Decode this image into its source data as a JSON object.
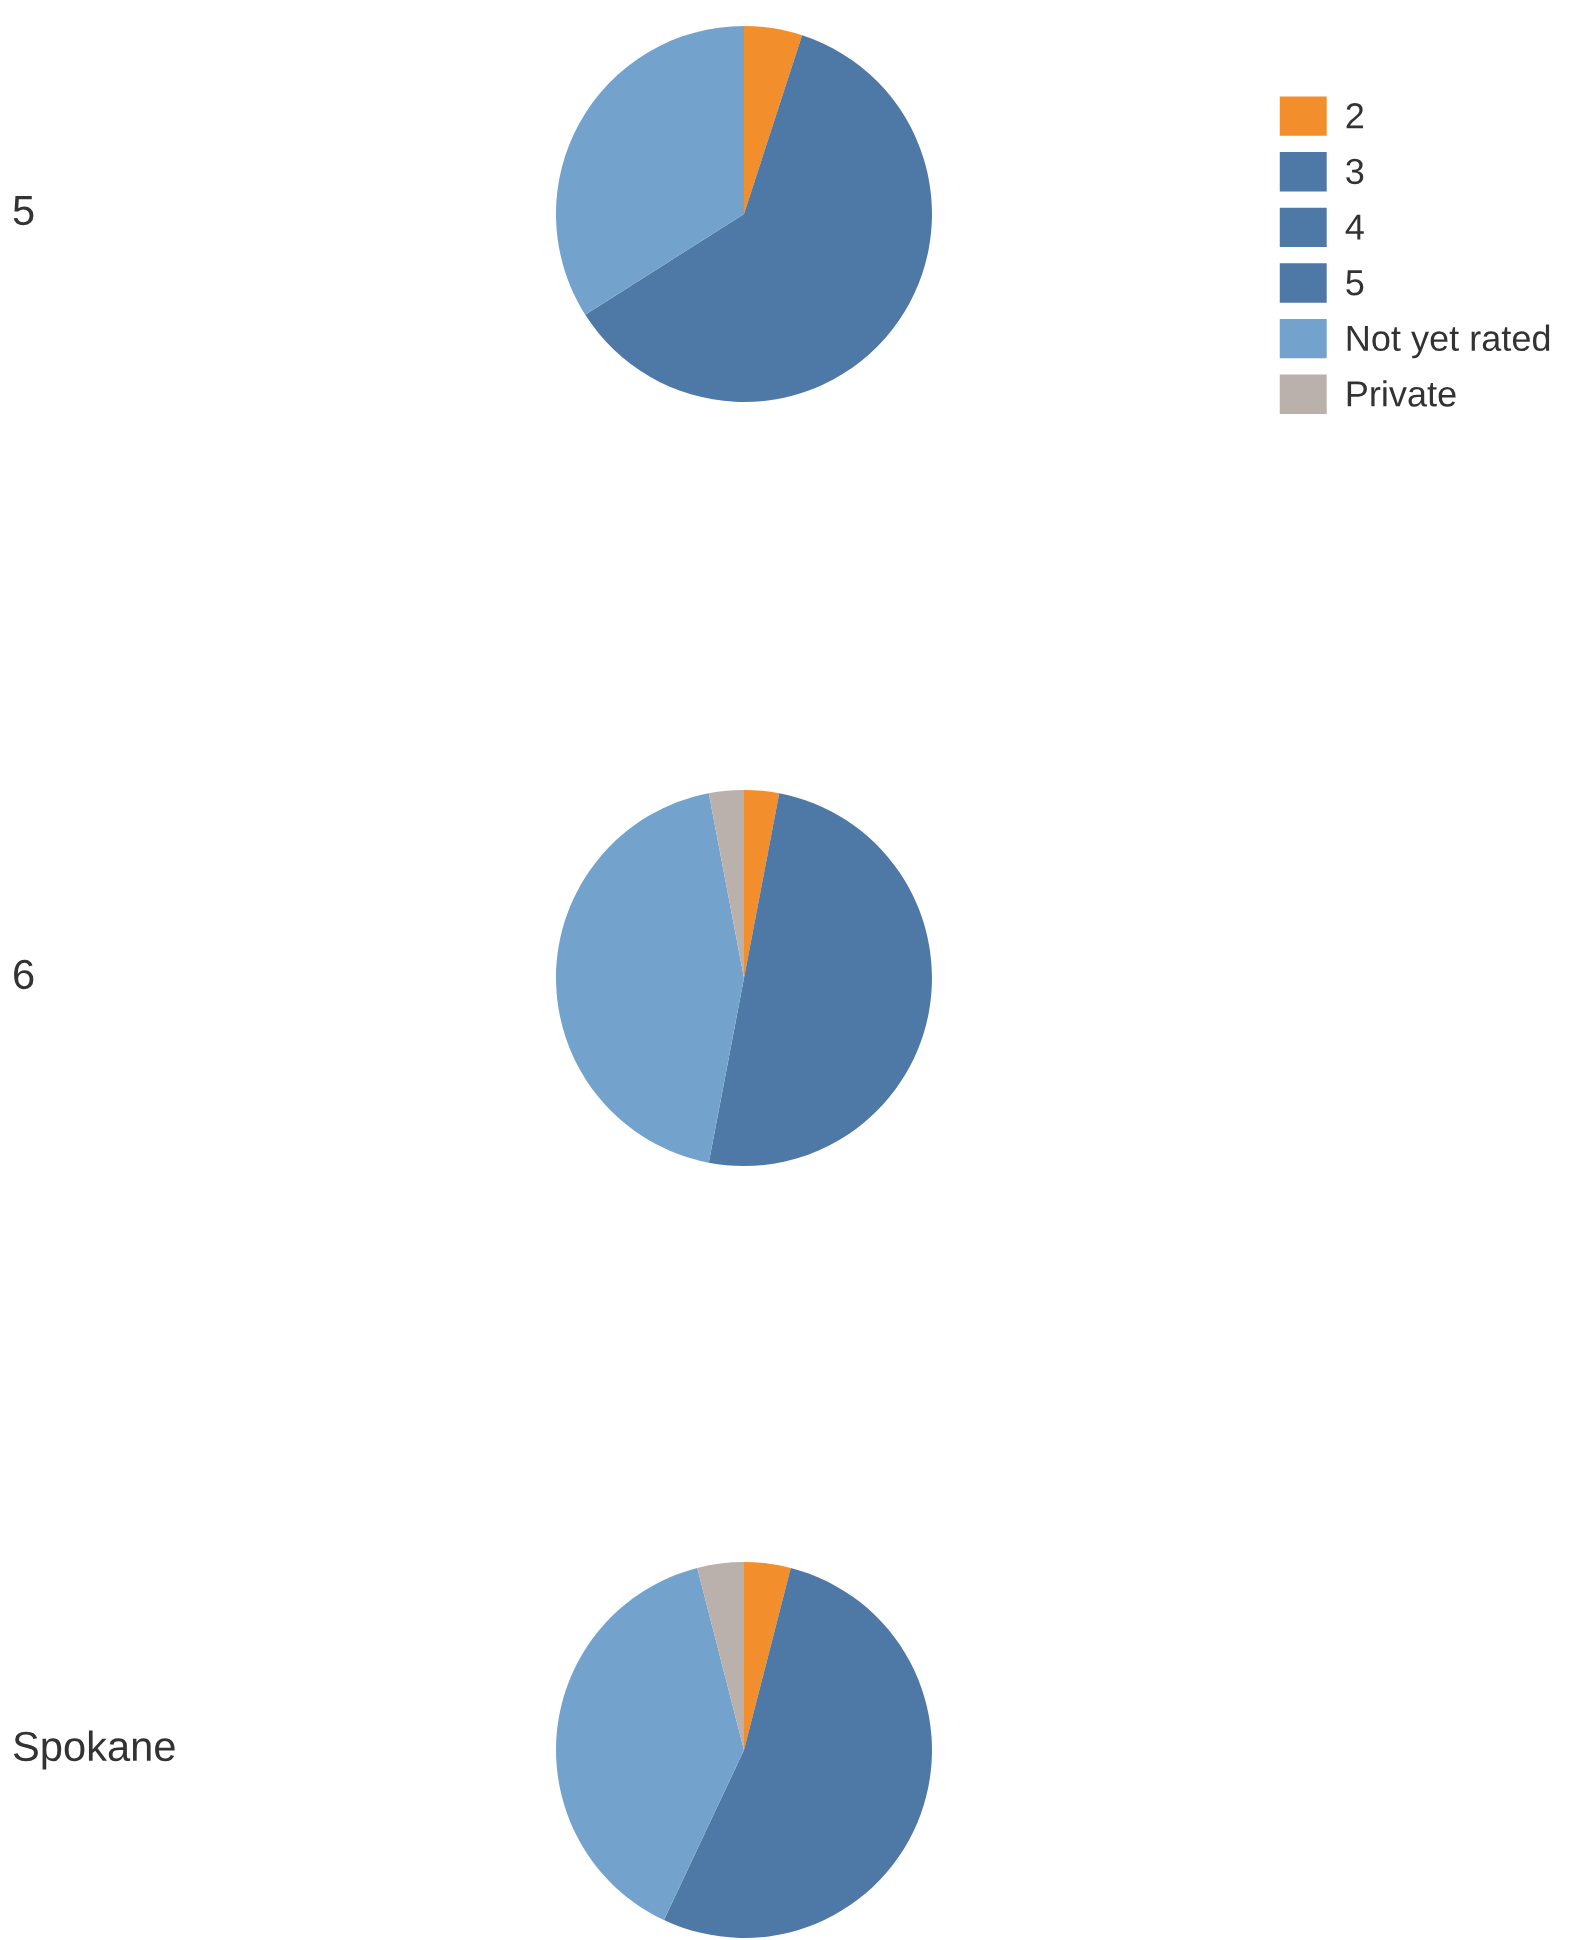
{
  "chart_data": {
    "type": "pie",
    "categories": [
      "2",
      "3",
      "4",
      "5",
      "Not yet rated",
      "Private"
    ],
    "colors": [
      "#f28e2b",
      "#4e79a7",
      "#4e79a7",
      "#4e79a7",
      "#73a3cc",
      "#bab0ac"
    ],
    "legend": "top right",
    "series": [
      {
        "name": "5",
        "values": [
          5,
          61,
          0,
          0,
          34,
          0
        ]
      },
      {
        "name": "6",
        "values": [
          3,
          50,
          0,
          0,
          44,
          3
        ]
      },
      {
        "name": "Spokane",
        "values": [
          4,
          53,
          0,
          0,
          39,
          4
        ]
      }
    ]
  }
}
